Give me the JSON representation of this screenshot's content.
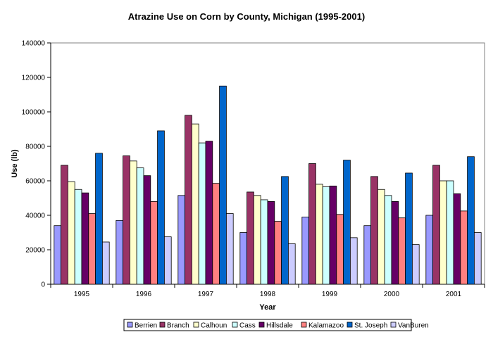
{
  "chart_data": {
    "type": "bar",
    "title": "Atrazine Use on Corn by County, Michigan (1995-2001)",
    "xlabel": "Year",
    "ylabel": "Use (lb)",
    "ylim": [
      0,
      140000
    ],
    "yticks": [
      0,
      20000,
      40000,
      60000,
      80000,
      100000,
      120000,
      140000
    ],
    "grid": false,
    "legend_position": "bottom",
    "categories": [
      "1995",
      "1996",
      "1997",
      "1998",
      "1999",
      "2000",
      "2001"
    ],
    "series": [
      {
        "name": "Berrien",
        "color": "#9999ff",
        "values": [
          34000,
          37000,
          51500,
          30000,
          39000,
          34000,
          40000
        ]
      },
      {
        "name": "Branch",
        "color": "#993366",
        "values": [
          69000,
          74500,
          98000,
          53500,
          70000,
          62500,
          69000
        ]
      },
      {
        "name": "Calhoun",
        "color": "#ffffcc",
        "values": [
          59500,
          71500,
          93000,
          51500,
          58000,
          55000,
          60000
        ]
      },
      {
        "name": "Cass",
        "color": "#ccffff",
        "values": [
          55000,
          67500,
          82000,
          49000,
          56500,
          51500,
          60000
        ]
      },
      {
        "name": "Hillsdale",
        "color": "#660066",
        "values": [
          53000,
          63000,
          83000,
          48000,
          57000,
          48000,
          52500
        ]
      },
      {
        "name": "Kalamazoo",
        "color": "#ff8080",
        "values": [
          41000,
          48000,
          58500,
          36500,
          40500,
          38500,
          42500
        ]
      },
      {
        "name": "St. Joseph",
        "color": "#0066cc",
        "values": [
          76000,
          89000,
          115000,
          62500,
          72000,
          64500,
          74000
        ]
      },
      {
        "name": "VanBuren",
        "color": "#ccccff",
        "values": [
          24500,
          27500,
          41000,
          23500,
          27000,
          23000,
          30000
        ]
      }
    ]
  }
}
